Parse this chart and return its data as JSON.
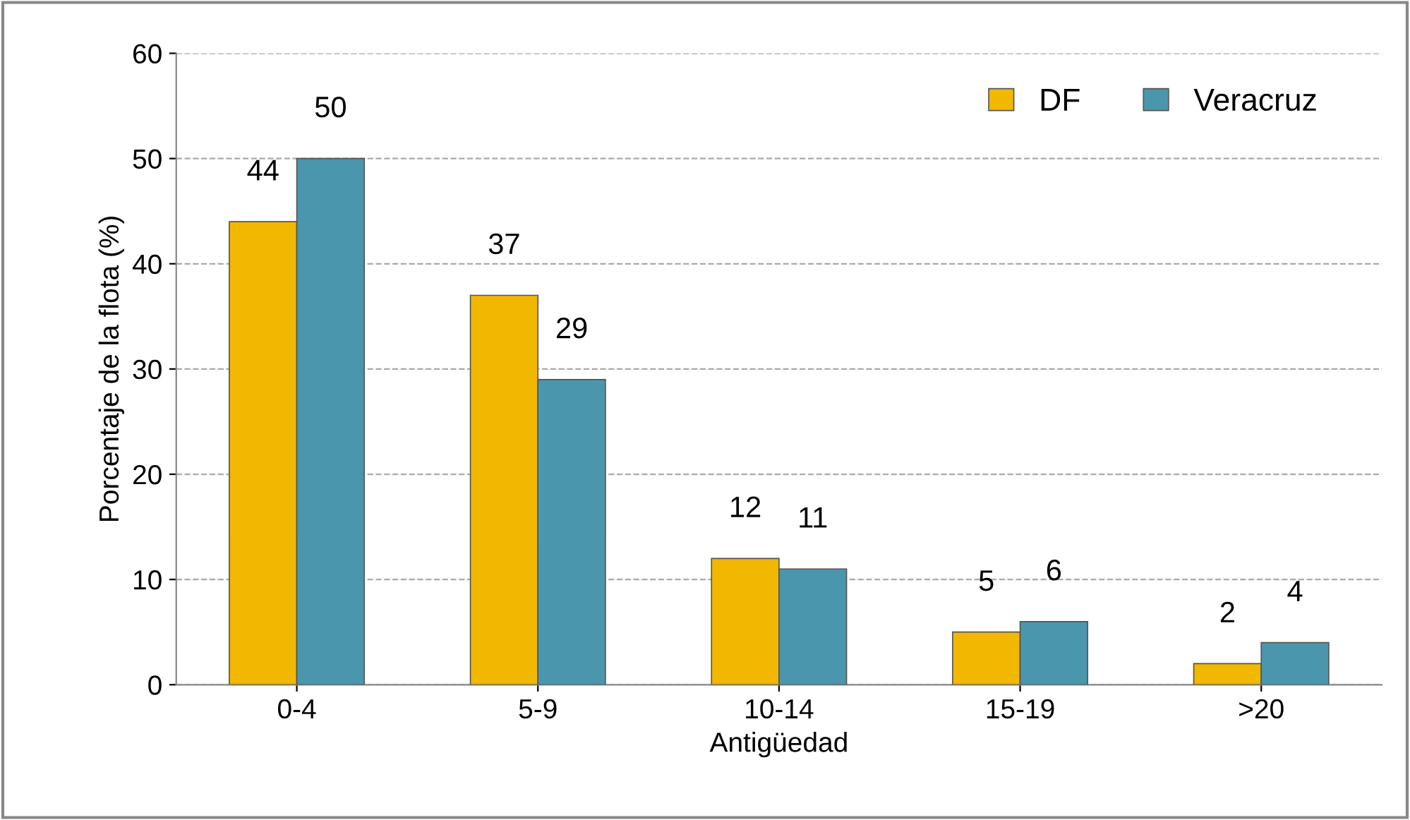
{
  "chart_data": {
    "type": "bar",
    "xlabel": "Antigüedad",
    "ylabel": "Porcentaje de la flota (%)",
    "categories": [
      "0-4",
      "5-9",
      "10-14",
      "15-19",
      ">20"
    ],
    "series": [
      {
        "name": "DF",
        "color": "#f2b700",
        "values": [
          44,
          37,
          12,
          5,
          2
        ]
      },
      {
        "name": "Veracruz",
        "color": "#4a97ad",
        "values": [
          50,
          29,
          11,
          6,
          4
        ]
      }
    ],
    "ylim": [
      0,
      60
    ],
    "yticks": [
      0,
      10,
      20,
      30,
      40,
      50,
      60
    ],
    "grid": "y",
    "legend": "top right",
    "data_labels": true
  }
}
